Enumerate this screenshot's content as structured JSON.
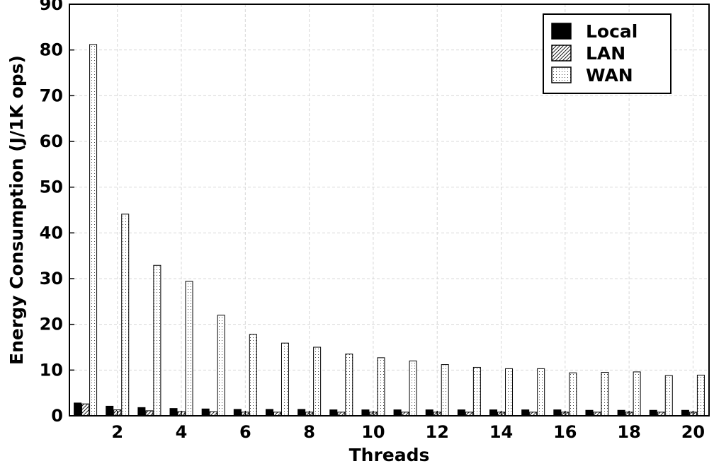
{
  "chart_data": {
    "type": "bar",
    "xlabel": "Threads",
    "ylabel": "Energy Consumption (J/1K ops)",
    "ylim": [
      0,
      90
    ],
    "yticks": [
      0,
      10,
      20,
      30,
      40,
      50,
      60,
      70,
      80,
      90
    ],
    "xticks": [
      2,
      4,
      6,
      8,
      10,
      12,
      14,
      16,
      18,
      20
    ],
    "grid": true,
    "legend_position": "top-right",
    "categories": [
      1,
      2,
      3,
      4,
      5,
      6,
      7,
      8,
      9,
      10,
      11,
      12,
      13,
      14,
      15,
      16,
      17,
      18,
      19,
      20
    ],
    "series": [
      {
        "name": "Local",
        "pattern": "solid",
        "values": [
          2.8,
          2.1,
          1.8,
          1.6,
          1.5,
          1.4,
          1.4,
          1.4,
          1.3,
          1.3,
          1.3,
          1.3,
          1.3,
          1.3,
          1.3,
          1.3,
          1.2,
          1.2,
          1.2,
          1.2
        ]
      },
      {
        "name": "LAN",
        "pattern": "hatch",
        "values": [
          2.6,
          1.3,
          1.1,
          0.9,
          0.9,
          0.8,
          0.8,
          0.8,
          0.8,
          0.8,
          0.8,
          0.8,
          0.8,
          0.8,
          0.8,
          0.8,
          0.8,
          0.8,
          0.8,
          0.8
        ]
      },
      {
        "name": "WAN",
        "pattern": "dots",
        "values": [
          81.2,
          44.1,
          32.9,
          29.4,
          22.0,
          17.8,
          15.9,
          15.0,
          13.5,
          12.7,
          12.0,
          11.2,
          10.6,
          10.3,
          10.3,
          9.4,
          9.5,
          9.6,
          8.8,
          8.9
        ]
      }
    ]
  },
  "colors": {
    "local": "#000000",
    "background": "#ffffff",
    "grid": "#d8d8d8"
  }
}
